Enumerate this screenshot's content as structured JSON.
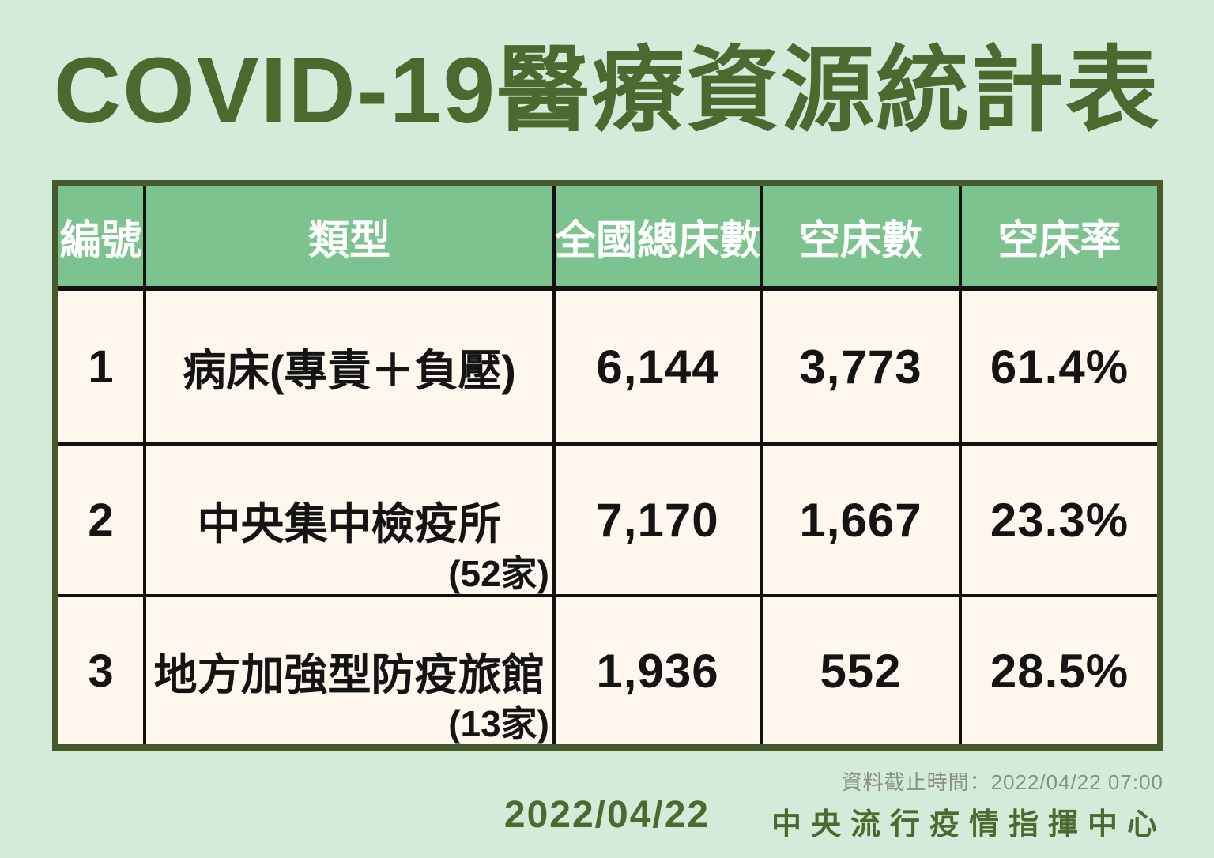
{
  "title": "COVID-19醫療資源統計表",
  "table": {
    "headers": {
      "no": "編號",
      "type": "類型",
      "total_beds": "全國總床數",
      "empty_beds": "空床數",
      "empty_rate": "空床率"
    },
    "rows": [
      {
        "no": "1",
        "type": "病床(專責＋負壓)",
        "sub": "",
        "total": "6,144",
        "empty": "3,773",
        "rate": "61.4%"
      },
      {
        "no": "2",
        "type": "中央集中檢疫所",
        "sub": "(52家)",
        "total": "7,170",
        "empty": "1,667",
        "rate": "23.3%"
      },
      {
        "no": "3",
        "type": "地方加強型防疫旅館",
        "sub": "(13家)",
        "total": "1,936",
        "empty": "552",
        "rate": "28.5%"
      }
    ]
  },
  "footer": {
    "cutoff_note": "資料截止時間：2022/04/22 07:00",
    "date": "2022/04/22",
    "organization": "中央流行疫情指揮中心"
  },
  "colors": {
    "page_background": "#d3ebd9",
    "title_green": "#4b6a30",
    "header_green": "#7cc390",
    "header_text": "#ffffff",
    "cell_cream": "#fdf7ed",
    "grid_line_black": "#111111",
    "outer_border_green": "#48592e",
    "footnote_gray": "#8a8f88"
  },
  "chart_data": {
    "type": "table",
    "title": "COVID-19醫療資源統計表",
    "columns": [
      "編號",
      "類型",
      "全國總床數",
      "空床數",
      "空床率"
    ],
    "rows": [
      [
        "1",
        "病床(專責＋負壓)",
        "6,144",
        "3,773",
        "61.4%"
      ],
      [
        "2",
        "中央集中檢疫所 (52家)",
        "7,170",
        "1,667",
        "23.3%"
      ],
      [
        "3",
        "地方加強型防疫旅館 (13家)",
        "1,936",
        "552",
        "28.5%"
      ]
    ],
    "values_numeric": {
      "total_beds": [
        6144,
        7170,
        1936
      ],
      "empty_beds": [
        3773,
        1667,
        552
      ],
      "empty_rate_percent": [
        61.4,
        23.3,
        28.5
      ]
    },
    "notes": "資料截止時間：2022/04/22 07:00，中央流行疫情指揮中心"
  }
}
